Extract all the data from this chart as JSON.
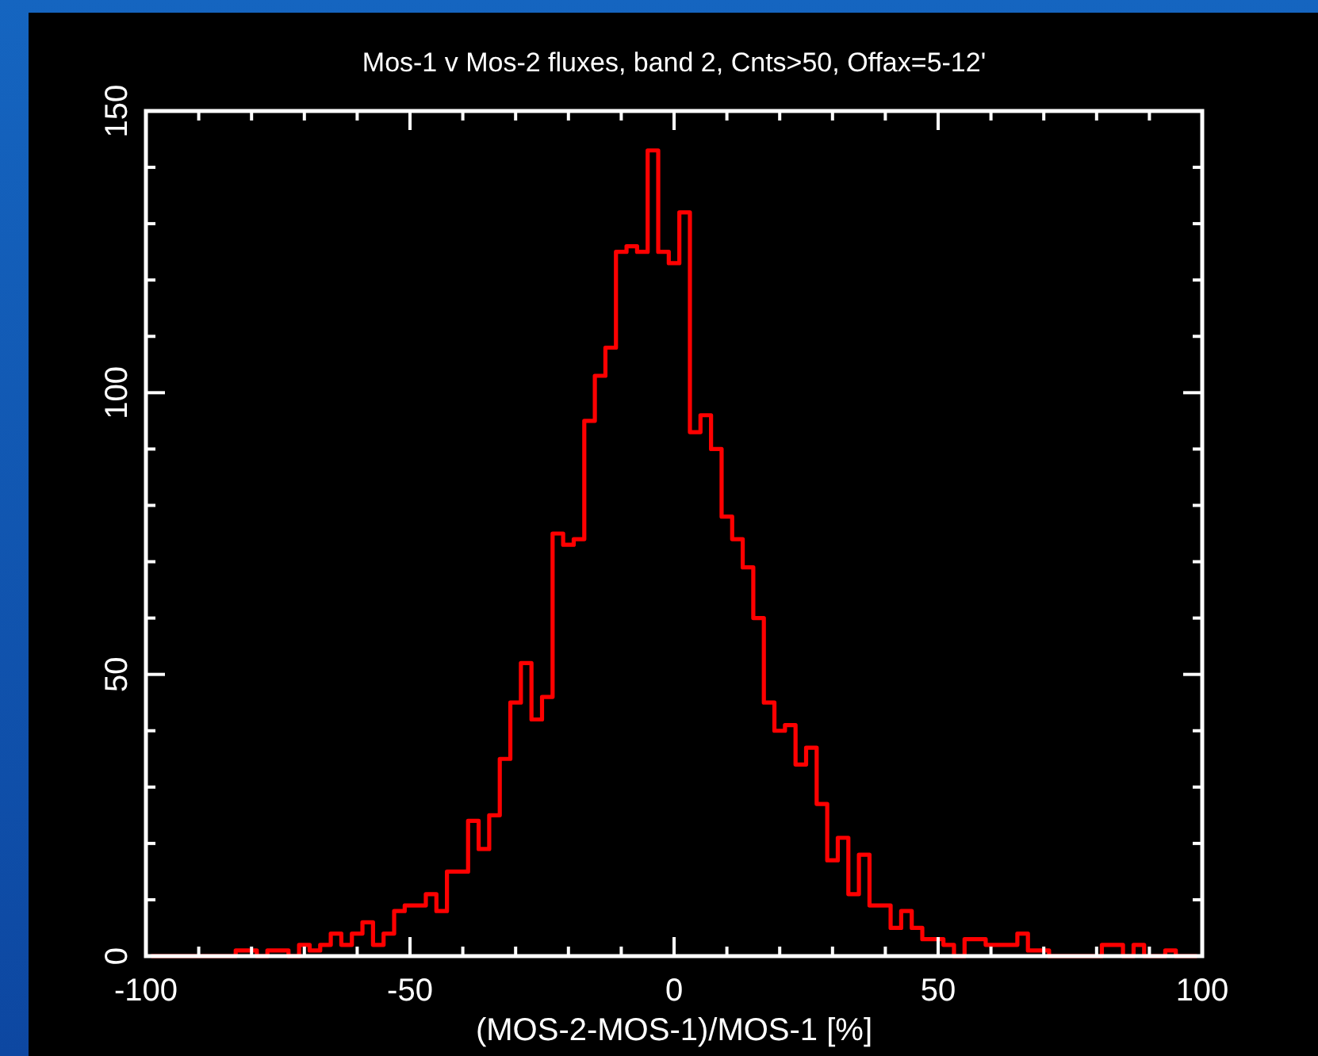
{
  "chart_data": {
    "type": "histogram",
    "title": "Mos-1 v Mos-2 fluxes, band 2, Cnts>50, Offax=5-12'",
    "xlabel": "(MOS-2-MOS-1)/MOS-1 [%]",
    "color": "#ff0000",
    "bins": [
      -99,
      -97,
      -95,
      -93,
      -91,
      -89,
      -87,
      -85,
      -83,
      -81,
      -79,
      -77,
      -75,
      -73,
      -71,
      -69,
      -67,
      -65,
      -63,
      -61,
      -59,
      -57,
      -55,
      -53,
      -51,
      -49,
      -47,
      -45,
      -43,
      -41,
      -39,
      -37,
      -35,
      -33,
      -31,
      -29,
      -27,
      -25,
      -23,
      -21,
      -19,
      -17,
      -15,
      -13,
      -11,
      -9,
      -7,
      -5,
      -3,
      -1,
      1,
      3,
      5,
      7,
      9,
      11,
      13,
      15,
      17,
      19,
      21,
      23,
      25,
      27,
      29,
      31,
      33,
      35,
      37,
      39,
      41,
      43,
      45,
      47,
      49,
      51,
      53,
      55,
      57,
      59,
      61,
      63,
      65,
      67,
      69,
      71,
      73,
      75,
      77,
      79,
      81,
      83,
      85,
      87,
      89,
      91,
      93,
      95,
      97,
      99
    ],
    "values": [
      0,
      0,
      0,
      0,
      0,
      0,
      0,
      0,
      1,
      1,
      0,
      1,
      1,
      0,
      2,
      1,
      2,
      4,
      2,
      4,
      6,
      2,
      4,
      8,
      9,
      9,
      11,
      8,
      15,
      15,
      24,
      19,
      25,
      35,
      45,
      52,
      42,
      46,
      75,
      73,
      74,
      95,
      103,
      108,
      125,
      126,
      125,
      143,
      125,
      123,
      132,
      93,
      96,
      90,
      78,
      74,
      69,
      60,
      45,
      40,
      41,
      34,
      37,
      27,
      17,
      21,
      11,
      18,
      9,
      9,
      5,
      8,
      5,
      3,
      3,
      2,
      0,
      3,
      3,
      2,
      2,
      2,
      4,
      1,
      1,
      0,
      0,
      0,
      0,
      0,
      2,
      2,
      0,
      2,
      0,
      0,
      1,
      0,
      0
    ],
    "xlim": [
      -100,
      100
    ],
    "xticks": [
      -100,
      {
        "value": -90,
        "label": null
      },
      {
        "value": -80,
        "label": null
      },
      {
        "value": -70,
        "label": null
      },
      {
        "value": -60,
        "label": null
      },
      -50,
      {
        "value": -40,
        "label": null
      },
      {
        "value": -30,
        "label": null
      },
      {
        "value": -20,
        "label": null
      },
      {
        "value": -10,
        "label": null
      },
      0,
      {
        "value": 10,
        "label": null
      },
      {
        "value": 20,
        "label": null
      },
      {
        "value": 30,
        "label": null
      },
      {
        "value": 40,
        "label": null
      },
      50,
      {
        "value": 60,
        "label": null
      },
      {
        "value": 70,
        "label": null
      },
      {
        "value": 80,
        "label": null
      },
      {
        "value": 90,
        "label": null
      },
      100
    ],
    "ylim": [
      0,
      150
    ],
    "yticks": [
      0,
      {
        "value": 10,
        "label": null
      },
      {
        "value": 20,
        "label": null
      },
      {
        "value": 30,
        "label": null
      },
      {
        "value": 40,
        "label": null
      },
      50,
      {
        "value": 60,
        "label": null
      },
      {
        "value": 70,
        "label": null
      },
      {
        "value": 80,
        "label": null
      },
      {
        "value": 90,
        "label": null
      },
      100,
      {
        "value": 110,
        "label": null
      },
      {
        "value": 120,
        "label": null
      },
      {
        "value": 130,
        "label": null
      },
      {
        "value": 140,
        "label": null
      },
      150
    ],
    "grid": false
  }
}
